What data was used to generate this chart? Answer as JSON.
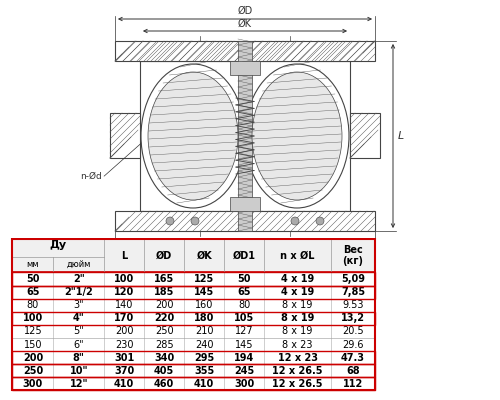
{
  "rows": [
    [
      "50",
      "2\"",
      "100",
      "165",
      "125",
      "50",
      "4 x 19",
      "5,09"
    ],
    [
      "65",
      "2\"1/2",
      "120",
      "185",
      "145",
      "65",
      "4 x 19",
      "7,85"
    ],
    [
      "80",
      "3\"",
      "140",
      "200",
      "160",
      "80",
      "8 x 19",
      "9.53"
    ],
    [
      "100",
      "4\"",
      "170",
      "220",
      "180",
      "105",
      "8 x 19",
      "13,2"
    ],
    [
      "125",
      "5\"",
      "200",
      "250",
      "210",
      "127",
      "8 x 19",
      "20.5"
    ],
    [
      "150",
      "6\"",
      "230",
      "285",
      "240",
      "145",
      "8 x 23",
      "29.6"
    ],
    [
      "200",
      "8\"",
      "301",
      "340",
      "295",
      "194",
      "12 x 23",
      "47.3"
    ],
    [
      "250",
      "10\"",
      "370",
      "405",
      "355",
      "245",
      "12 x 26.5",
      "68"
    ],
    [
      "300",
      "12\"",
      "410",
      "460",
      "410",
      "300",
      "12 x 26.5",
      "112"
    ]
  ],
  "bold_rows": [
    0,
    1,
    3,
    6,
    7,
    8
  ],
  "border_color": "#cc0000",
  "text_color": "#000000",
  "line_color": "#444444",
  "hatch_color": "#555555",
  "dim_color": "#333333"
}
